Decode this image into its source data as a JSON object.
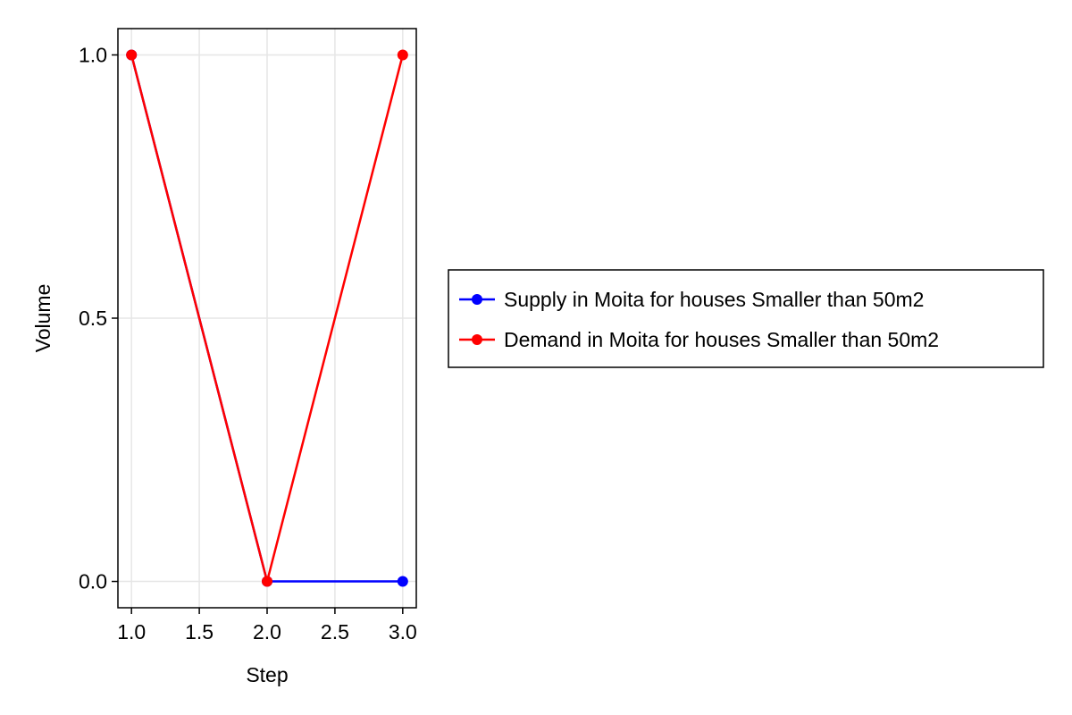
{
  "chart_data": {
    "type": "line",
    "xlabel": "Step",
    "ylabel": "Volume",
    "xlim": [
      0.9,
      3.1
    ],
    "ylim": [
      -0.05,
      1.05
    ],
    "xticks": [
      1.0,
      1.5,
      2.0,
      2.5,
      3.0
    ],
    "yticks": [
      0.0,
      0.5,
      1.0
    ],
    "x_tick_labels": [
      "1.0",
      "1.5",
      "2.0",
      "2.5",
      "3.0"
    ],
    "y_tick_labels": [
      "0.0",
      "0.5",
      "1.0"
    ],
    "grid": true,
    "legend_position": "right",
    "series": [
      {
        "name": "Supply in Moita for houses Smaller than 50m2",
        "color": "#0000ff",
        "x": [
          1.0,
          2.0,
          3.0
        ],
        "y": [
          1.0,
          0.0,
          0.0
        ]
      },
      {
        "name": "Demand in Moita for houses Smaller than 50m2",
        "color": "#ff0000",
        "x": [
          1.0,
          2.0,
          3.0
        ],
        "y": [
          1.0,
          0.0,
          1.0
        ]
      }
    ]
  }
}
